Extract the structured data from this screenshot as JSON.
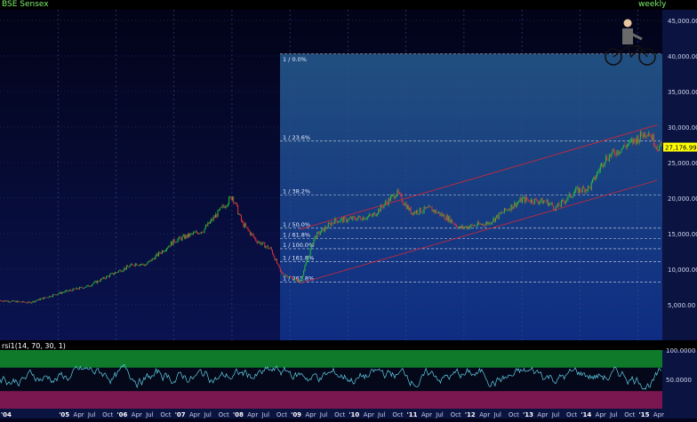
{
  "header": {
    "symbol": "BSE Sensex",
    "period": "weekly"
  },
  "price_axis": {
    "ticks": [
      "45,000.00",
      "40,000.00",
      "35,000.00",
      "30,000.00",
      "25,000.00",
      "20,000.00",
      "15,000.00",
      "10,000.00",
      "5,000.00"
    ],
    "last_price": "27,176.99"
  },
  "rsi_panel": {
    "title": "rsi1(14, 70, 30, 1)",
    "ticks": [
      "100.0000",
      "50.0000"
    ]
  },
  "time_axis": {
    "labels": [
      "'04",
      "'05",
      "Apr",
      "Jul",
      "Oct",
      "'06",
      "Apr",
      "Jul",
      "Oct",
      "'07",
      "Apr",
      "Jul",
      "Oct",
      "'08",
      "Apr",
      "Jul",
      "Oct",
      "'09",
      "Apr",
      "Jul",
      "Oct",
      "'10",
      "Apr",
      "Jul",
      "Oct",
      "'11",
      "Apr",
      "Jul",
      "Oct",
      "'12",
      "Apr",
      "Jul",
      "Oct",
      "'13",
      "Apr",
      "Jul",
      "Oct",
      "'14",
      "Apr",
      "Jul",
      "Oct",
      "'15",
      "Apr"
    ]
  },
  "fibonacci": {
    "levels": [
      "1 / 261.8%",
      "1 / 161.8%",
      "1 / 100.0%",
      "1 / 61.8%",
      "1 / 50.0%",
      "1 / 38.2%",
      "1 / 23.6%",
      "1 / 0.0%"
    ]
  },
  "colors": {
    "up": "#27c23a",
    "down": "#e0343a",
    "channel": "#c8283a",
    "rsi_line": "#5fd0e8",
    "background": "#02031a"
  },
  "icons": {
    "mascot": "cyclist-icon"
  },
  "chart_data": {
    "type": "candlestick",
    "period": "weekly",
    "x": [
      "2004-01",
      "2004-07",
      "2005-01",
      "2005-07",
      "2006-01",
      "2006-05",
      "2006-07",
      "2007-01",
      "2007-07",
      "2008-01",
      "2008-03",
      "2008-06",
      "2008-09",
      "2008-11",
      "2009-03",
      "2009-06",
      "2009-10",
      "2010-01",
      "2010-06",
      "2010-11",
      "2011-02",
      "2011-06",
      "2011-10",
      "2011-12",
      "2012-06",
      "2012-10",
      "2013-01",
      "2013-06",
      "2013-08",
      "2013-12",
      "2014-03",
      "2014-06",
      "2014-09",
      "2014-12",
      "2015-03",
      "2015-05"
    ],
    "close": [
      5600,
      5300,
      6600,
      7600,
      9600,
      10800,
      10600,
      14000,
      15500,
      20300,
      16500,
      14000,
      12800,
      9500,
      8200,
      14500,
      16800,
      17000,
      17500,
      20800,
      18000,
      18500,
      17000,
      15800,
      16500,
      18500,
      19800,
      19500,
      18600,
      21000,
      21500,
      25500,
      26800,
      28000,
      29500,
      27177
    ],
    "fib_levels": [
      {
        "ratio": "0.0%",
        "value": 8200
      },
      {
        "ratio": "23.6%",
        "value": 11092
      },
      {
        "ratio": "38.2%",
        "value": 12881
      },
      {
        "ratio": "50.0%",
        "value": 14327
      },
      {
        "ratio": "61.8%",
        "value": 15772
      },
      {
        "ratio": "100.0%",
        "value": 20453
      },
      {
        "ratio": "161.8%",
        "value": 28026
      },
      {
        "ratio": "261.8%",
        "value": 40280
      }
    ],
    "channel": {
      "upper": [
        [
          "2009-03",
          15600
        ],
        [
          "2015-05",
          30300
        ]
      ],
      "lower": [
        [
          "2009-03",
          8000
        ],
        [
          "2015-05",
          22500
        ]
      ]
    },
    "ylim": [
      0,
      46500
    ],
    "rsi": {
      "params": "14, 70, 30, 1",
      "overbought": 70,
      "oversold": 30,
      "ylim": [
        0,
        100
      ]
    }
  }
}
